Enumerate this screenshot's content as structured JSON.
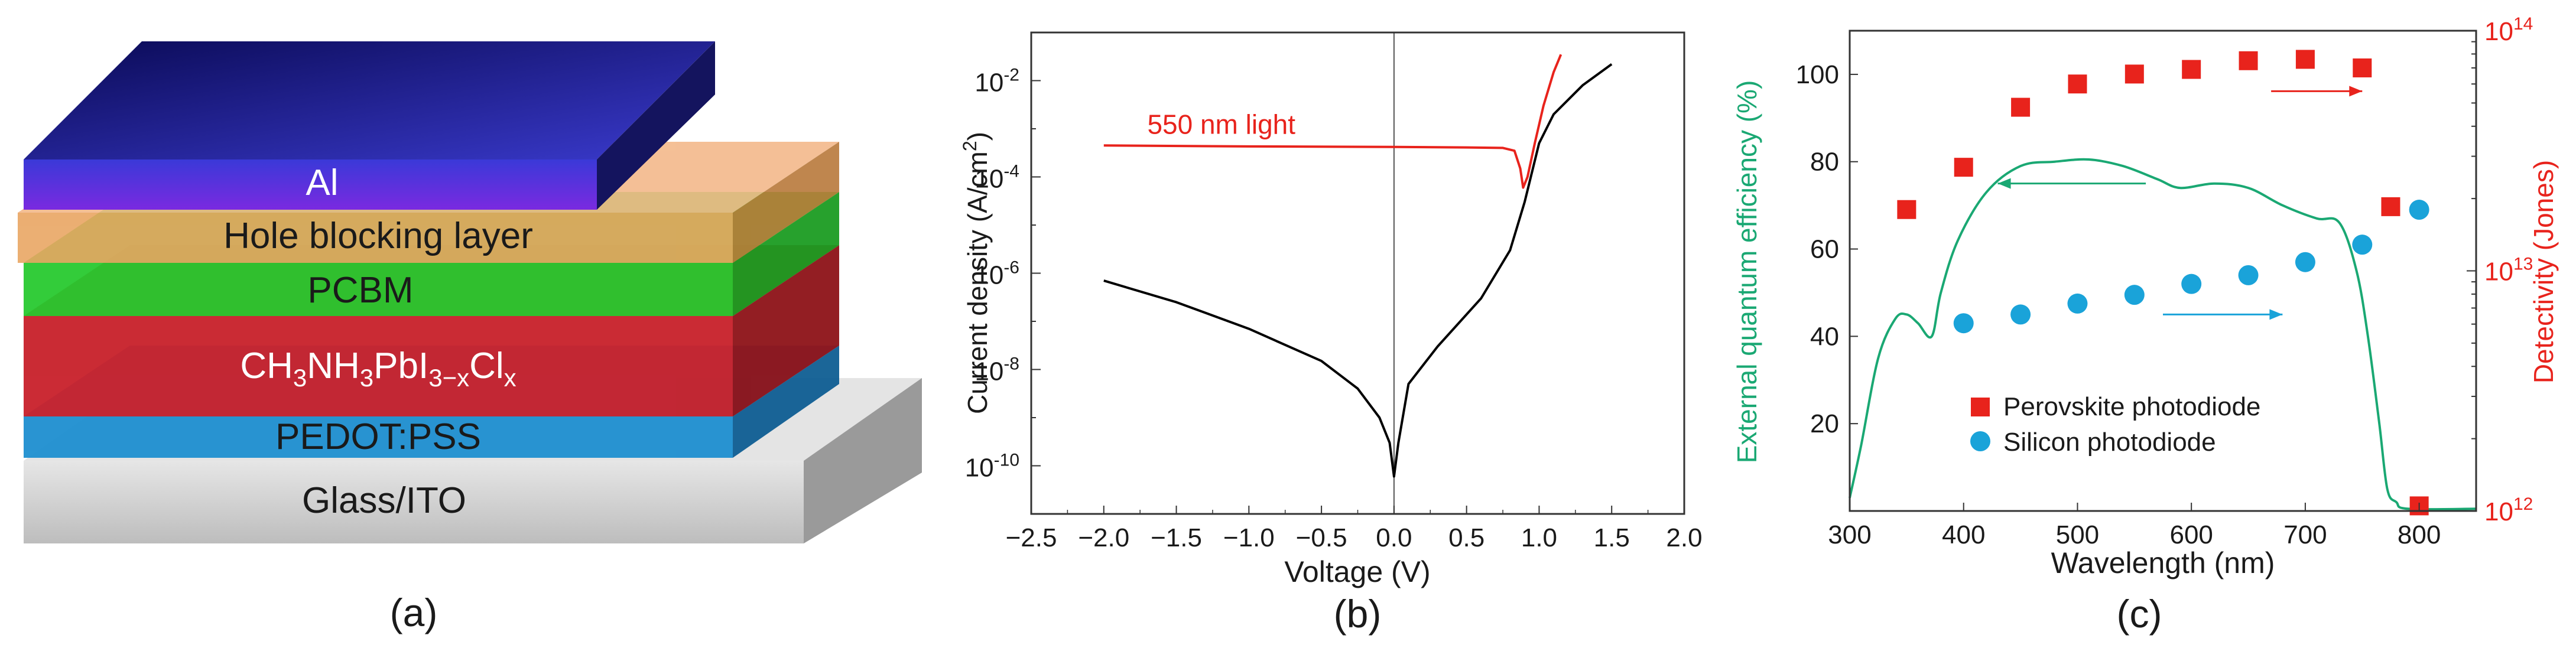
{
  "panels": {
    "a": {
      "label": "(a)",
      "layers": [
        {
          "name": "Al",
          "color": "#2b2ec8"
        },
        {
          "name": "Hole blocking layer",
          "color": "#e8a15a"
        },
        {
          "name": "PCBM",
          "color": "#22c82a"
        },
        {
          "name": "CH3NH3PbI3−xClx",
          "color": "#c8202a"
        },
        {
          "name": "PEDOT:PSS",
          "color": "#1e8fd0"
        },
        {
          "name": "Glass/ITO",
          "color": "#cfcfcf"
        }
      ],
      "perovskite_label": {
        "base1": "CH",
        "sub1": "3",
        "base2": "NH",
        "sub2": "3",
        "base3": "PbI",
        "sub3": "3−x",
        "base4": "Cl",
        "sub4": "x"
      }
    },
    "b": {
      "label": "(b)"
    },
    "c": {
      "label": "(c)"
    }
  },
  "chart_data": [
    {
      "type": "line",
      "panel": "b",
      "xlabel": "Voltage (V)",
      "ylabel_main": "Current density (A/cm",
      "ylabel_sup": "2",
      "ylabel_tail": ")",
      "y_scale": "log",
      "xlim": [
        -2.5,
        2.0
      ],
      "ylim": [
        1e-11,
        0.1
      ],
      "x_ticks": [
        "−2.5",
        "−2.0",
        "−1.5",
        "−1.0",
        "−0.5",
        "0.0",
        "0.5",
        "1.0",
        "1.5",
        "2.0"
      ],
      "x_tick_values": [
        -2.5,
        -2.0,
        -1.5,
        -1.0,
        -0.5,
        0.0,
        0.5,
        1.0,
        1.5,
        2.0
      ],
      "y_ticks": [
        {
          "value": 1e-10,
          "base": "10",
          "exp": "-10"
        },
        {
          "value": 1e-08,
          "base": "10",
          "exp": "-8"
        },
        {
          "value": 1e-06,
          "base": "10",
          "exp": "-6"
        },
        {
          "value": 0.0001,
          "base": "10",
          "exp": "-4"
        },
        {
          "value": 0.01,
          "base": "10",
          "exp": "-2"
        }
      ],
      "zero_line_x": 0.0,
      "annotation": "550 nm light",
      "series": [
        {
          "color": "#000000",
          "x": [
            -2.0,
            -1.5,
            -1.0,
            -0.5,
            -0.25,
            -0.1,
            -0.03,
            0.0,
            0.03,
            0.1,
            0.3,
            0.6,
            0.8,
            0.9,
            1.0,
            1.1,
            1.3,
            1.5
          ],
          "y": [
            7e-07,
            2.5e-07,
            7e-08,
            1.5e-08,
            4e-09,
            1e-09,
            3e-10,
            6e-11,
            3e-10,
            5e-09,
            3e-08,
            3e-07,
            3e-06,
            3e-05,
            0.0005,
            0.002,
            0.008,
            0.022
          ]
        },
        {
          "color": "#e8231c",
          "x": [
            -2.0,
            -1.0,
            0.0,
            0.5,
            0.75,
            0.83,
            0.87,
            0.89,
            0.92,
            0.97,
            1.03,
            1.1,
            1.15
          ],
          "y": [
            0.00045,
            0.00043,
            0.00042,
            0.00041,
            0.0004,
            0.00035,
            0.00015,
            6e-05,
            0.0001,
            0.0005,
            0.003,
            0.015,
            0.035
          ]
        }
      ]
    },
    {
      "type": "scatter",
      "panel": "c",
      "xlabel": "Wavelength (nm)",
      "ylabel_left": "External quantum efficiency (%)",
      "ylabel_right": "Detectivity (Jones)",
      "xlim": [
        300,
        850
      ],
      "ylim_left": [
        0,
        110
      ],
      "ylim_right": [
        1000000000000.0,
        100000000000000.0
      ],
      "y_right_scale": "log",
      "x_ticks": [
        "300",
        "400",
        "500",
        "600",
        "700",
        "800"
      ],
      "x_tick_values": [
        300,
        400,
        500,
        600,
        700,
        800
      ],
      "y_left_ticks": [
        "20",
        "40",
        "60",
        "80",
        "100"
      ],
      "y_left_tick_values": [
        20,
        40,
        60,
        80,
        100
      ],
      "y_right_ticks": [
        {
          "value": 1000000000000.0,
          "base": "10",
          "exp": "12"
        },
        {
          "value": 10000000000000.0,
          "base": "10",
          "exp": "13"
        },
        {
          "value": 100000000000000.0,
          "base": "10",
          "exp": "14"
        }
      ],
      "left_color": "#1aa873",
      "right_color": "#e8231c",
      "eqe_curve": {
        "color": "#1aa873",
        "x": [
          300,
          310,
          325,
          340,
          350,
          360,
          372,
          380,
          395,
          420,
          450,
          480,
          510,
          540,
          570,
          590,
          620,
          650,
          680,
          710,
          730,
          745,
          755,
          765,
          772,
          780,
          790,
          850
        ],
        "y": [
          3,
          15,
          35,
          44,
          45,
          43,
          40,
          50,
          62,
          73,
          79,
          80,
          80.5,
          79,
          76,
          74,
          75,
          74,
          70,
          67,
          66,
          55,
          40,
          20,
          5,
          2,
          0.5,
          0.5
        ]
      },
      "series": [
        {
          "name": "Perovskite photodiode",
          "marker": "square",
          "color": "#e8231c",
          "axis": "right",
          "x": [
            350,
            400,
            450,
            500,
            550,
            600,
            650,
            700,
            750,
            775,
            800
          ],
          "y": [
            18000000000000.0,
            27000000000000.0,
            48000000000000.0,
            60000000000000.0,
            66000000000000.0,
            69000000000000.0,
            75000000000000.0,
            76000000000000.0,
            70000000000000.0,
            18500000000000.0,
            1050000000000.0
          ]
        },
        {
          "name": "Silicon photodiode",
          "marker": "circle",
          "color": "#1aa3d9",
          "axis": "left",
          "x": [
            400,
            450,
            500,
            550,
            600,
            650,
            700,
            750,
            800
          ],
          "y": [
            43,
            45,
            47.5,
            49.5,
            52,
            54,
            57,
            61,
            69
          ]
        }
      ]
    }
  ]
}
